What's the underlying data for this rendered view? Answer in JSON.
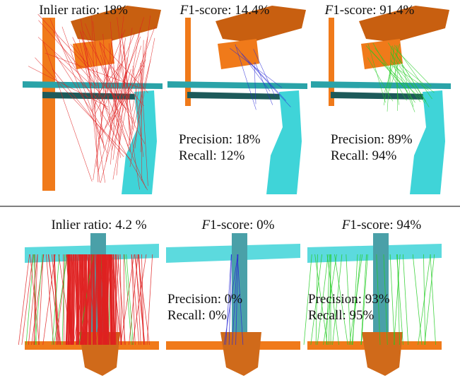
{
  "rows": [
    {
      "panels": [
        {
          "title": "Inlier ratio: 18%"
        },
        {
          "metric": "F",
          "title": "1-score: 14.4%",
          "precision": "Precision: 18%",
          "recall": "Recall: 12%"
        },
        {
          "metric": "F",
          "title": "1-score: 91.4%",
          "precision": "Precision: 89%",
          "recall": "Recall: 94%"
        }
      ]
    },
    {
      "panels": [
        {
          "title": "Inlier ratio: 4.2 %"
        },
        {
          "metric": "F",
          "title": "1-score: 0%",
          "precision": "Precision: 0%",
          "recall": "Recall: 0%"
        },
        {
          "metric": "F",
          "title": "1-score: 94%",
          "precision": "Precision: 93%",
          "recall": "Recall: 95%"
        }
      ]
    }
  ]
}
